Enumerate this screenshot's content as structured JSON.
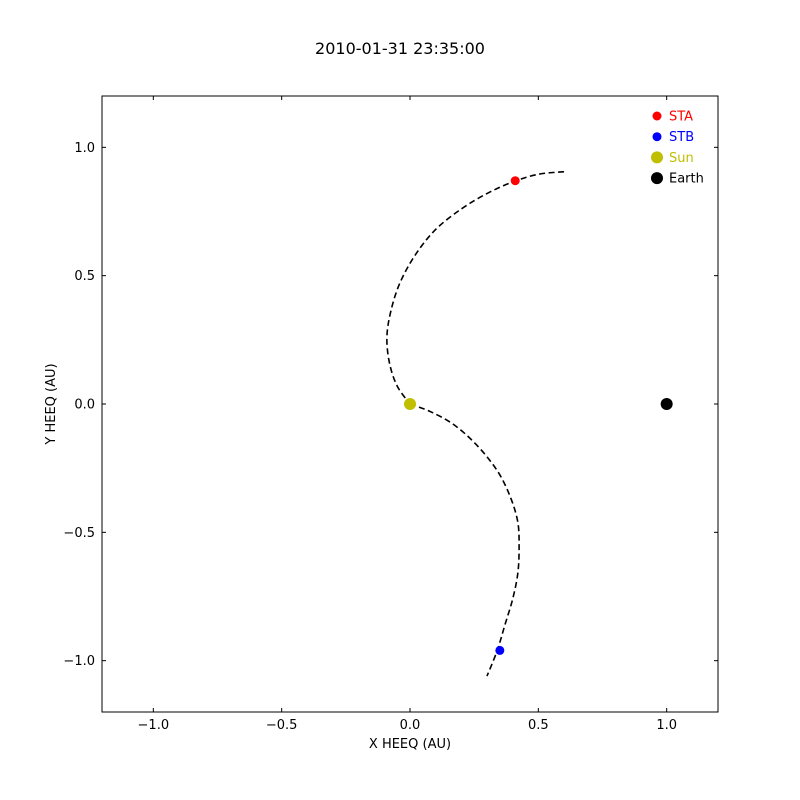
{
  "chart_data": {
    "type": "scatter",
    "title": "2010-01-31 23:35:00",
    "xlabel": "X HEEQ (AU)",
    "ylabel": "Y HEEQ (AU)",
    "xlim": [
      -1.2,
      1.2
    ],
    "ylim": [
      -1.2,
      1.2
    ],
    "xticks": [
      -1.0,
      -0.5,
      0.0,
      0.5,
      1.0
    ],
    "yticks": [
      -1.0,
      -0.5,
      0.0,
      0.5,
      1.0
    ],
    "xtick_labels": [
      "−1.0",
      "−0.5",
      "0.0",
      "0.5",
      "1.0"
    ],
    "ytick_labels": [
      "−1.0",
      "−0.5",
      "0.0",
      "0.5",
      "1.0"
    ],
    "grid": false,
    "legend_position": "top-right",
    "series": [
      {
        "name": "STA",
        "color": "#ff0000",
        "x": [
          0.41
        ],
        "y": [
          0.87
        ],
        "marker": "small"
      },
      {
        "name": "STB",
        "color": "#0000ff",
        "x": [
          0.35
        ],
        "y": [
          -0.96
        ],
        "marker": "small"
      },
      {
        "name": "Sun",
        "color": "#bfbf00",
        "x": [
          0.0
        ],
        "y": [
          0.0
        ],
        "marker": "large"
      },
      {
        "name": "Earth",
        "color": "#000000",
        "x": [
          1.0
        ],
        "y": [
          0.0
        ],
        "marker": "large"
      }
    ],
    "spiral_lines": [
      {
        "style": "dashed",
        "color": "#000000",
        "x": [
          0.6,
          0.5,
          0.4,
          0.3,
          0.2,
          0.1,
          0.02,
          -0.04,
          -0.075,
          -0.09,
          -0.08,
          -0.05,
          0.0
        ],
        "y": [
          0.905,
          0.895,
          0.865,
          0.82,
          0.76,
          0.68,
          0.58,
          0.47,
          0.36,
          0.26,
          0.16,
          0.07,
          0.0
        ]
      },
      {
        "style": "dashed",
        "color": "#000000",
        "x": [
          0.0,
          0.08,
          0.17,
          0.26,
          0.34,
          0.39,
          0.42,
          0.425,
          0.42,
          0.4,
          0.37,
          0.34,
          0.3
        ],
        "y": [
          0.0,
          -0.03,
          -0.08,
          -0.16,
          -0.26,
          -0.36,
          -0.46,
          -0.56,
          -0.66,
          -0.76,
          -0.86,
          -0.96,
          -1.06
        ]
      }
    ]
  }
}
